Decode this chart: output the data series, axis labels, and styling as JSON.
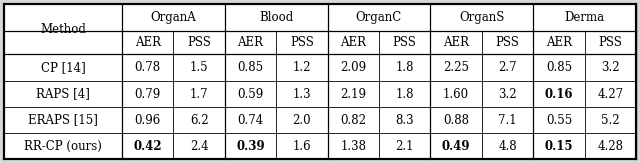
{
  "methods": [
    "CP [14]",
    "RAPS [4]",
    "ERAPS [15]",
    "RR-CP (ours)"
  ],
  "datasets": [
    "OrganA",
    "Blood",
    "OrganC",
    "OrganS",
    "Derma"
  ],
  "data": [
    [
      "0.78",
      "1.5",
      "0.85",
      "1.2",
      "2.09",
      "1.8",
      "2.25",
      "2.7",
      "0.85",
      "3.2"
    ],
    [
      "0.79",
      "1.7",
      "0.59",
      "1.3",
      "2.19",
      "1.8",
      "1.60",
      "3.2",
      "0.16",
      "4.27"
    ],
    [
      "0.96",
      "6.2",
      "0.74",
      "2.0",
      "0.82",
      "8.3",
      "0.88",
      "7.1",
      "0.55",
      "5.2"
    ],
    [
      "0.42",
      "2.4",
      "0.39",
      "1.6",
      "1.38",
      "2.1",
      "0.49",
      "4.8",
      "0.15",
      "4.28"
    ]
  ],
  "bold_cells": [
    [
      false,
      false,
      false,
      false,
      false,
      false,
      false,
      false,
      false,
      false
    ],
    [
      false,
      false,
      false,
      false,
      false,
      false,
      false,
      false,
      true,
      false
    ],
    [
      false,
      false,
      false,
      false,
      false,
      false,
      false,
      false,
      false,
      false
    ],
    [
      true,
      false,
      true,
      false,
      false,
      false,
      true,
      false,
      true,
      false
    ]
  ],
  "bg_color": "#d8d8d8",
  "font_size": 8.5,
  "fig_width": 6.4,
  "fig_height": 1.63,
  "dpi": 100
}
